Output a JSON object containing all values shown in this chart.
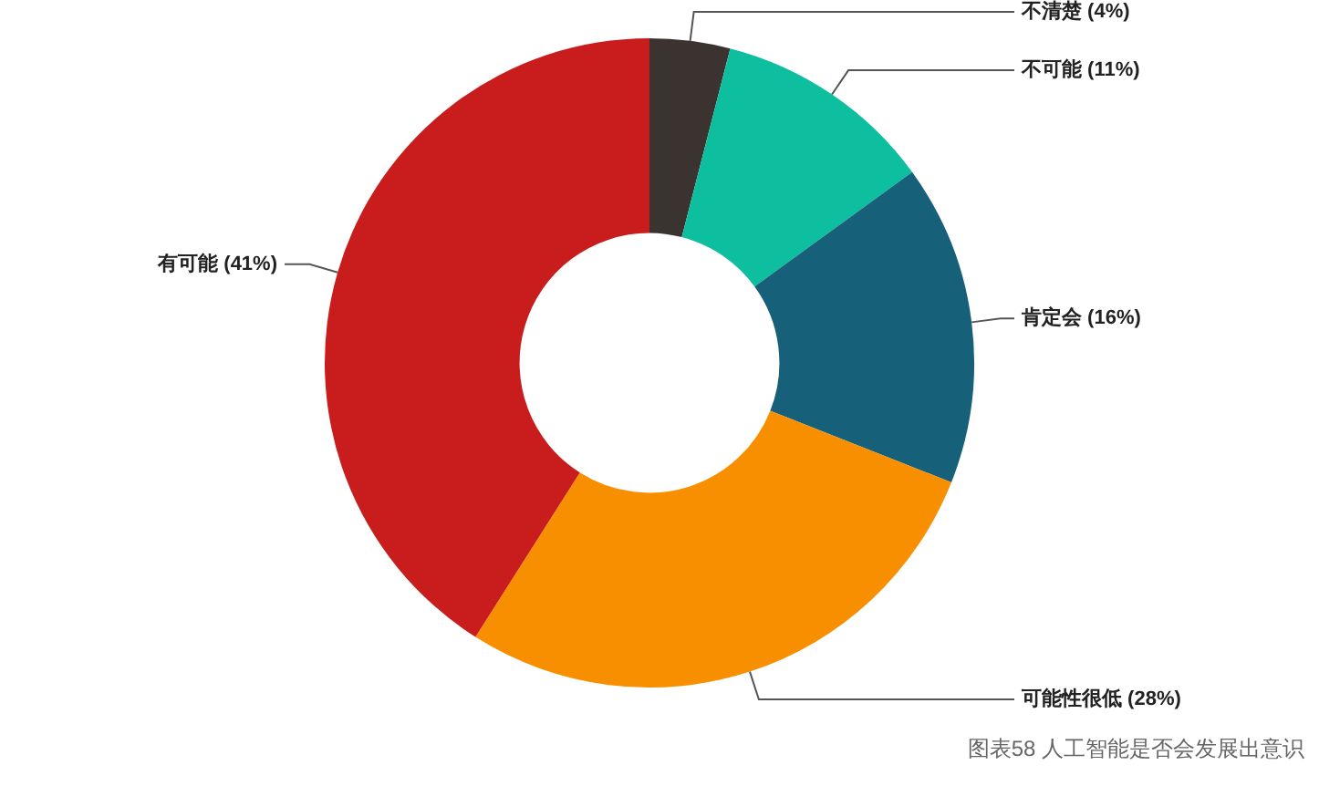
{
  "chart_data": {
    "type": "donut",
    "categories": [
      "不清楚",
      "不可能",
      "肯定会",
      "可能性很低",
      "有可能"
    ],
    "values": [
      4,
      11,
      16,
      28,
      41
    ],
    "value_labels": [
      "(4%)",
      "(11%)",
      "(16%)",
      "(28%)",
      "(41%)"
    ],
    "colors": [
      "#3a3330",
      "#0dbf9e",
      "#17607a",
      "#f78f00",
      "#c91d1d"
    ],
    "legend": false,
    "annotations": [
      "图表58 人工智能是否会发展出意识"
    ]
  }
}
